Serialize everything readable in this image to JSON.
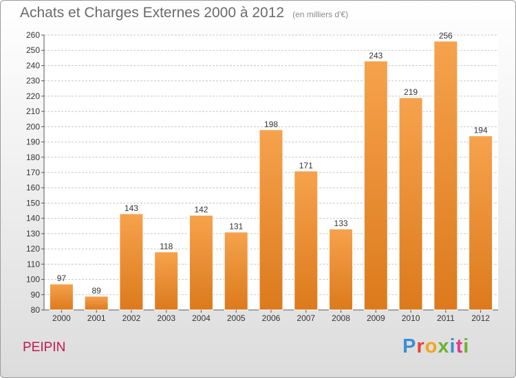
{
  "header": {
    "title": "Achats et Charges Externes 2000 à 2012",
    "subtitle": "(en milliers d'€)"
  },
  "footer": {
    "commune": "PEIPIN",
    "brand": "Proxiti",
    "brand_colors": [
      "#3a8fd6",
      "#e2462e",
      "#f2a51a",
      "#6ab42d",
      "#3a8fd6",
      "#e23a8e",
      "#6ab42d"
    ]
  },
  "colors": {
    "bar_top": "#f6a24d",
    "bar_bottom": "#dc7a1c",
    "grid": "#c8c8c8"
  },
  "chart_data": {
    "type": "bar",
    "title": "Achats et Charges Externes 2000 à 2012",
    "subtitle": "(en milliers d'€)",
    "categories": [
      "2000",
      "2001",
      "2002",
      "2003",
      "2004",
      "2005",
      "2006",
      "2007",
      "2008",
      "2009",
      "2010",
      "2011",
      "2012"
    ],
    "values": [
      97,
      89,
      143,
      118,
      142,
      131,
      198,
      171,
      133,
      243,
      219,
      256,
      194
    ],
    "xlabel": "",
    "ylabel": "",
    "ylim": [
      80,
      260
    ],
    "yticks": [
      80,
      90,
      100,
      110,
      120,
      130,
      140,
      150,
      160,
      170,
      180,
      190,
      200,
      210,
      220,
      230,
      240,
      250,
      260
    ],
    "grid": true,
    "data_labels": true
  }
}
